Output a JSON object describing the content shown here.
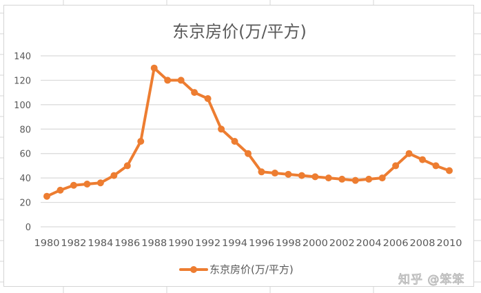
{
  "chart_data": {
    "type": "line",
    "title": "东京房价(万/平方)",
    "xlabel": "",
    "ylabel": "",
    "ylim": [
      0,
      140
    ],
    "yticks": [
      0,
      20,
      40,
      60,
      80,
      100,
      120,
      140
    ],
    "xtick_labels": [
      "1980",
      "1982",
      "1984",
      "1986",
      "1988",
      "1990",
      "1992",
      "1994",
      "1996",
      "1998",
      "2000",
      "2002",
      "2004",
      "2006",
      "2008",
      "2010"
    ],
    "grid": "horizontal",
    "legend_position": "bottom",
    "x": [
      1980,
      1981,
      1982,
      1983,
      1984,
      1985,
      1986,
      1987,
      1988,
      1989,
      1990,
      1991,
      1992,
      1993,
      1994,
      1995,
      1996,
      1997,
      1998,
      1999,
      2000,
      2001,
      2002,
      2003,
      2004,
      2005,
      2006,
      2007,
      2008,
      2009,
      2010
    ],
    "series": [
      {
        "name": "东京房价(万/平方)",
        "color": "#ED7D31",
        "marker": "circle",
        "values": [
          25,
          30,
          34,
          35,
          36,
          42,
          50,
          70,
          130,
          120,
          120,
          110,
          105,
          80,
          70,
          60,
          45,
          44,
          43,
          42,
          41,
          40,
          39,
          38,
          39,
          40,
          50,
          60,
          55,
          50,
          46
        ]
      }
    ]
  },
  "legend": {
    "label": "东京房价(万/平方)"
  },
  "watermark": "知乎 @笨笨",
  "colors": {
    "series": "#ED7D31",
    "grid": "#d9d9d9",
    "text": "#595959"
  }
}
